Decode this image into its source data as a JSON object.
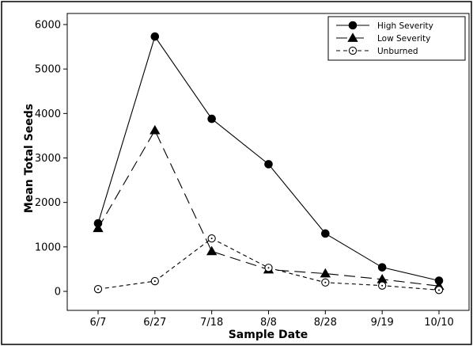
{
  "chart_data": {
    "type": "line",
    "xlabel": "Sample Date",
    "ylabel": "Mean Total Seeds",
    "categories": [
      "6/7",
      "6/27",
      "7/18",
      "8/8",
      "8/28",
      "9/19",
      "10/10"
    ],
    "ylim": [
      -200,
      6200
    ],
    "yticks": [
      0,
      1000,
      2000,
      3000,
      4000,
      5000,
      6000
    ],
    "grid": false,
    "legend_position": "top-right",
    "series": [
      {
        "name": "High Severity",
        "marker": "filled-circle",
        "line": "solid",
        "color": "#000000",
        "values": [
          1530,
          5730,
          3880,
          2860,
          1300,
          540,
          240
        ]
      },
      {
        "name": "Low Severity",
        "marker": "filled-triangle",
        "line": "long-dash",
        "color": "#000000",
        "values": [
          1420,
          3620,
          900,
          490,
          400,
          270,
          120
        ]
      },
      {
        "name": "Unburned",
        "marker": "open-circle",
        "line": "short-dash",
        "color": "#000000",
        "values": [
          50,
          230,
          1190,
          530,
          200,
          130,
          30
        ]
      }
    ]
  }
}
